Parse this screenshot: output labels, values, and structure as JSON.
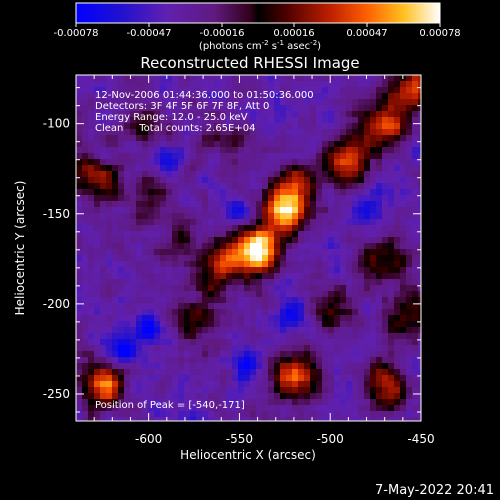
{
  "colorbar": {
    "ticks": [
      "-0.00078",
      "-0.00047",
      "-0.00016",
      "0.00016",
      "0.00047",
      "0.00078"
    ],
    "units_main": "(photons cm",
    "units_exp1": "-2",
    "units_s": " s",
    "units_exp2": "-1",
    "units_asec": " asec",
    "units_exp3": "-2",
    "units_close": ")"
  },
  "chart_data": {
    "type": "heatmap",
    "title": "Reconstructed RHESSI Image",
    "xlabel": "Heliocentric X (arcsec)",
    "ylabel": "Heliocentric Y (arcsec)",
    "x_ticks": [
      "-600",
      "-550",
      "-500",
      "-450"
    ],
    "y_ticks": [
      "-100",
      "-150",
      "-200",
      "-250"
    ],
    "xlim": [
      -640,
      -450
    ],
    "ylim": [
      -265,
      -73
    ],
    "x_tick_values": [
      -600,
      -550,
      -500,
      -450
    ],
    "y_tick_values": [
      -100,
      -150,
      -200,
      -250
    ],
    "color_range": [
      -0.00078,
      0.00078
    ],
    "peak": [
      -540,
      -171
    ],
    "annotations": [
      "12-Nov-2006 01:44:36.000 to 01:50:36.000",
      "Detectors: 3F 4F 5F 6F 7F 8F, Att 0",
      "Energy Range: 12.0 - 25.0 keV",
      "Clean     Total counts: 2.65E+04"
    ],
    "peak_label": "Position of Peak = [-540,-171]",
    "hot_spots": [
      {
        "x": -540,
        "y": -171,
        "amp": 1.0
      },
      {
        "x": -525,
        "y": -150,
        "amp": 0.8
      },
      {
        "x": -520,
        "y": -135,
        "amp": 0.55
      },
      {
        "x": -560,
        "y": -180,
        "amp": 0.6
      },
      {
        "x": -490,
        "y": -120,
        "amp": 0.7
      },
      {
        "x": -470,
        "y": -100,
        "amp": 0.6
      },
      {
        "x": -455,
        "y": -80,
        "amp": 0.6
      },
      {
        "x": -625,
        "y": -245,
        "amp": 0.7
      },
      {
        "x": -520,
        "y": -240,
        "amp": 0.65
      },
      {
        "x": -470,
        "y": -245,
        "amp": 0.55
      },
      {
        "x": -630,
        "y": -130,
        "amp": 0.45
      },
      {
        "x": -600,
        "y": -140,
        "amp": 0.35
      },
      {
        "x": -575,
        "y": -210,
        "amp": 0.35
      },
      {
        "x": -605,
        "y": -100,
        "amp": 0.3
      },
      {
        "x": -500,
        "y": -200,
        "amp": 0.35
      },
      {
        "x": -470,
        "y": -175,
        "amp": 0.4
      },
      {
        "x": -455,
        "y": -205,
        "amp": 0.4
      },
      {
        "x": -560,
        "y": -110,
        "amp": 0.3
      },
      {
        "x": -585,
        "y": -165,
        "amp": 0.3
      }
    ],
    "cold_spots": [
      {
        "x": -615,
        "y": -225,
        "amp": 0.6
      },
      {
        "x": -600,
        "y": -215,
        "amp": 0.55
      },
      {
        "x": -550,
        "y": -150,
        "amp": 0.4
      },
      {
        "x": -520,
        "y": -205,
        "amp": 0.45
      },
      {
        "x": -480,
        "y": -145,
        "amp": 0.4
      },
      {
        "x": -590,
        "y": -120,
        "amp": 0.35
      },
      {
        "x": -545,
        "y": -235,
        "amp": 0.4
      }
    ]
  },
  "footer": {
    "timestamp": "7-May-2022 20:41"
  }
}
